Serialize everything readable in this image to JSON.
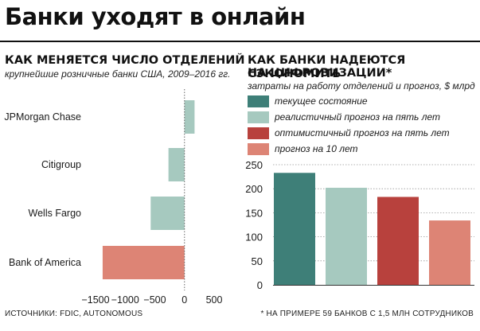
{
  "header": {
    "title": "Банки уходят в онлайн"
  },
  "left_panel": {
    "heading": "КАК МЕНЯЕТСЯ ЧИСЛО ОТДЕЛЕНИЙ",
    "subtitle": "крупнейшие розничные банки США, 2009–2016 гг."
  },
  "right_panel": {
    "heading_line1": "КАК БАНКИ НАДЕЮТСЯ СЭКОНОМИТЬ",
    "heading_line2": "НА ЦИФРОВИЗАЦИИ*",
    "subtitle": "затраты на работу отделений и прогноз, $ млрд"
  },
  "legend": {
    "items": [
      {
        "label": "текущее состояние",
        "color": "#3e7f78"
      },
      {
        "label": "реалистичный прогноз на пять лет",
        "color": "#a6c9bf"
      },
      {
        "label": "оптимистичный прогноз на пять лет",
        "color": "#b8413d"
      },
      {
        "label": "прогноз на 10 лет",
        "color": "#dd8475"
      }
    ]
  },
  "footer": {
    "sources": "ИСТОЧНИКИ: FDIC, AUTONOMOUS",
    "note": "* НА ПРИМЕРЕ 59 БАНКОВ С 1,5 МЛН СОТРУДНИКОВ"
  },
  "chart_data": [
    {
      "type": "bar",
      "orientation": "horizontal",
      "categories": [
        "JPMorgan Chase",
        "Citigroup",
        "Wells Fargo",
        "Bank of America"
      ],
      "values": [
        170,
        -270,
        -570,
        -1380
      ],
      "colors": [
        "#a6c9bf",
        "#a6c9bf",
        "#a6c9bf",
        "#dd8475"
      ],
      "xlim": [
        -1500,
        500
      ],
      "xticks": [
        -1500,
        -1000,
        -500,
        0,
        500
      ],
      "xtick_labels": [
        "−1500",
        "−1000",
        "−500",
        "0",
        "500"
      ],
      "grid": false
    },
    {
      "type": "bar",
      "categories": [
        "текущее состояние",
        "реалистичный прогноз на пять лет",
        "оптимистичный прогноз на пять лет",
        "прогноз на 10 лет"
      ],
      "values": [
        233,
        202,
        183,
        134
      ],
      "colors": [
        "#3e7f78",
        "#a6c9bf",
        "#b8413d",
        "#dd8475"
      ],
      "ylim": [
        0,
        250
      ],
      "yticks": [
        0,
        50,
        100,
        150,
        200,
        250
      ],
      "grid": true,
      "legend": "top"
    }
  ]
}
